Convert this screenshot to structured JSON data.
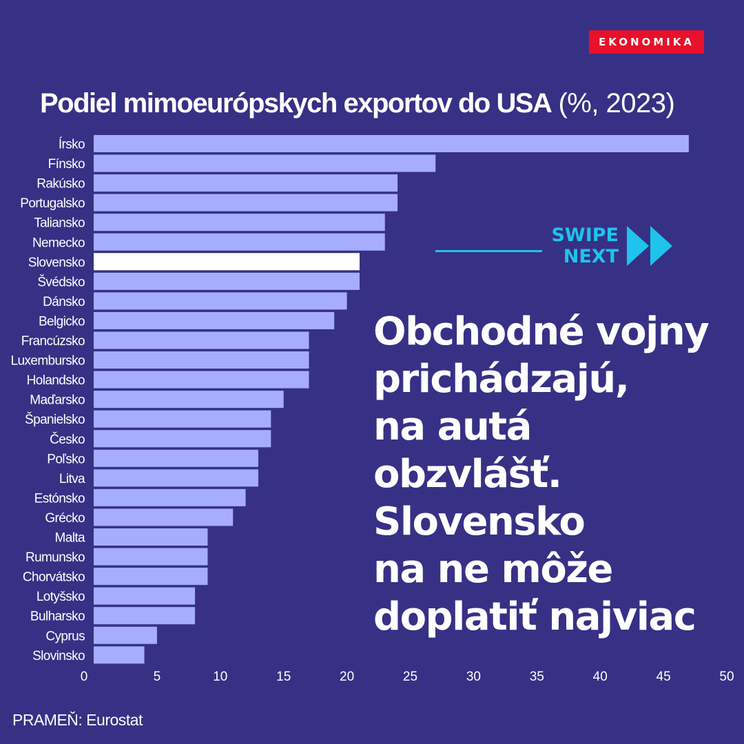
{
  "brand": {
    "label": "EKONOMIKA",
    "color": "#e8102a"
  },
  "swipe": {
    "line1": "SWIPE",
    "line2": "NEXT",
    "color": "#1ec4ec",
    "icon": "double-chevron-right-icon"
  },
  "headline": {
    "lines": [
      "Obchodné vojny",
      "prichádzajú,",
      "na autá",
      "obzvlášť.",
      "Slovensko",
      "na ne môže",
      "doplatiť najviac"
    ]
  },
  "source": "PRAMEŇ: Eurostat",
  "colors": {
    "background": "#363185",
    "bar": "#a6adfc",
    "highlight_bar": "#ffffff",
    "text": "#ffffff"
  },
  "chart_data": {
    "type": "bar",
    "orientation": "horizontal",
    "title": "Podiel mimoeurópskych exportov do USA",
    "title_unit": "(%, 2023)",
    "xlim": [
      0,
      50
    ],
    "xticks": [
      0,
      5,
      10,
      15,
      20,
      25,
      30,
      35,
      40,
      45,
      50
    ],
    "grid": false,
    "highlight": "Slovensko",
    "categories": [
      "Írsko",
      "Fínsko",
      "Rakúsko",
      "Portugalsko",
      "Taliansko",
      "Nemecko",
      "Slovensko",
      "Švédsko",
      "Dánsko",
      "Belgicko",
      "Francúzsko",
      "Luxembursko",
      "Holandsko",
      "Maďarsko",
      "Španielsko",
      "Česko",
      "Poľsko",
      "Litva",
      "Estónsko",
      "Grécko",
      "Malta",
      "Rumunsko",
      "Chorvátsko",
      "Lotyšsko",
      "Bulharsko",
      "Cyprus",
      "Slovinsko"
    ],
    "values": [
      47,
      27,
      24,
      24,
      23,
      23,
      21,
      21,
      20,
      19,
      17,
      17,
      17,
      15,
      14,
      14,
      13,
      13,
      12,
      11,
      9,
      9,
      9,
      8,
      8,
      5,
      4
    ]
  }
}
